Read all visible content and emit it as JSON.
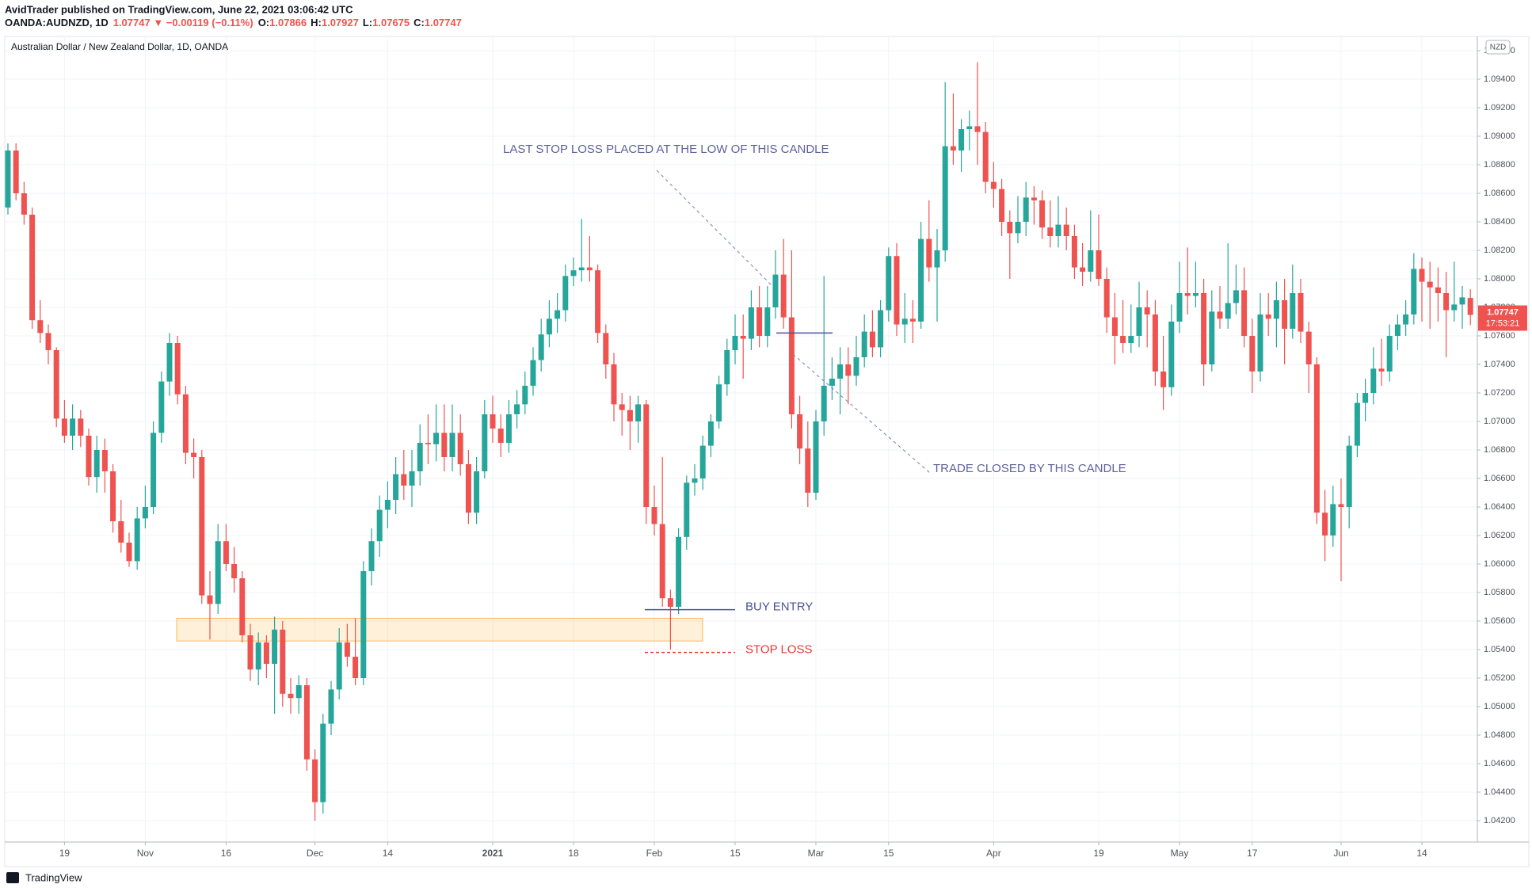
{
  "header": {
    "byline": "AvidTrader published on TradingView.com, June 22, 2021 03:06:42 UTC",
    "symbol": "OANDA:AUDNZD, 1D",
    "change": "1.07747 ▼ −0.00119 (−0.11%)",
    "ohlc": [
      {
        "key": "O:",
        "value": "1.07866"
      },
      {
        "key": "H:",
        "value": "1.07927"
      },
      {
        "key": "L:",
        "value": "1.07675"
      },
      {
        "key": "C:",
        "value": "1.07747"
      }
    ]
  },
  "footer": "TradingView",
  "currency": "NZD",
  "countdown": "17:53:21",
  "chart_data": {
    "type": "candlestick",
    "title": "Australian Dollar / New Zealand Dollar, 1D, OANDA",
    "up_color": "#26a69a",
    "down_color": "#ef5350",
    "grid": true,
    "ylim": [
      1.0405,
      1.097
    ],
    "yticks": [
      {
        "value": 1.042,
        "label": "1.04200"
      },
      {
        "value": 1.044,
        "label": "1.04400"
      },
      {
        "value": 1.046,
        "label": "1.04600"
      },
      {
        "value": 1.048,
        "label": "1.04800"
      },
      {
        "value": 1.05,
        "label": "1.05000"
      },
      {
        "value": 1.052,
        "label": "1.05200"
      },
      {
        "value": 1.054,
        "label": "1.05400"
      },
      {
        "value": 1.056,
        "label": "1.05600"
      },
      {
        "value": 1.058,
        "label": "1.05800"
      },
      {
        "value": 1.06,
        "label": "1.06000"
      },
      {
        "value": 1.062,
        "label": "1.06200"
      },
      {
        "value": 1.064,
        "label": "1.06400"
      },
      {
        "value": 1.066,
        "label": "1.06600"
      },
      {
        "value": 1.068,
        "label": "1.06800"
      },
      {
        "value": 1.07,
        "label": "1.07000"
      },
      {
        "value": 1.072,
        "label": "1.07200"
      },
      {
        "value": 1.074,
        "label": "1.07400"
      },
      {
        "value": 1.076,
        "label": "1.07600"
      },
      {
        "value": 1.078,
        "label": "1.07800"
      },
      {
        "value": 1.08,
        "label": "1.08000"
      },
      {
        "value": 1.082,
        "label": "1.08200"
      },
      {
        "value": 1.084,
        "label": "1.08400"
      },
      {
        "value": 1.086,
        "label": "1.08600"
      },
      {
        "value": 1.088,
        "label": "1.08800"
      },
      {
        "value": 1.09,
        "label": "1.09000"
      },
      {
        "value": 1.092,
        "label": "1.09200"
      },
      {
        "value": 1.094,
        "label": "1.09400"
      },
      {
        "value": 1.096,
        "label": "1.09600"
      }
    ],
    "xticks": [
      {
        "value": 7,
        "label": "19"
      },
      {
        "value": 17,
        "label": "Nov"
      },
      {
        "value": 27,
        "label": "16"
      },
      {
        "value": 38,
        "label": "Dec"
      },
      {
        "value": 47,
        "label": "14"
      },
      {
        "value": 60,
        "label": "2021"
      },
      {
        "value": 70,
        "label": "18"
      },
      {
        "value": 80,
        "label": "Feb"
      },
      {
        "value": 90,
        "label": "15"
      },
      {
        "value": 100,
        "label": "Mar"
      },
      {
        "value": 109,
        "label": "15"
      },
      {
        "value": 122,
        "label": "Apr"
      },
      {
        "value": 135,
        "label": "19"
      },
      {
        "value": 145,
        "label": "May"
      },
      {
        "value": 154,
        "label": "17"
      },
      {
        "value": 165,
        "label": "Jun"
      },
      {
        "value": 175,
        "label": "14"
      }
    ],
    "levels": [
      {
        "label": "BUY ENTRY",
        "value": 1.0568,
        "color": "#4a5396",
        "dashed": false
      },
      {
        "label": "STOP LOSS",
        "value": 1.0538,
        "color": "#e53935",
        "dashed": true
      }
    ],
    "zone": [
      1.0546,
      1.0562
    ],
    "trail_stop": 1.0762,
    "annotations": [
      {
        "text": "LAST STOP LOSS PLACED AT THE LOW OF THIS CANDLE"
      },
      {
        "text": "TRADE CLOSED BY THIS CANDLE"
      }
    ],
    "candles": [
      [
        1.085,
        1.0895,
        1.0845,
        1.089
      ],
      [
        1.089,
        1.0895,
        1.0855,
        1.086
      ],
      [
        1.086,
        1.0868,
        1.0838,
        1.0845
      ],
      [
        1.0845,
        1.085,
        1.0765,
        1.0771
      ],
      [
        1.0771,
        1.0785,
        1.0755,
        1.0762
      ],
      [
        1.0762,
        1.0768,
        1.074,
        1.075
      ],
      [
        1.075,
        1.0752,
        1.0696,
        1.0702
      ],
      [
        1.0702,
        1.0715,
        1.0685,
        1.069
      ],
      [
        1.069,
        1.0712,
        1.068,
        1.0702
      ],
      [
        1.0702,
        1.0708,
        1.0682,
        1.069
      ],
      [
        1.069,
        1.0695,
        1.0655,
        1.0661
      ],
      [
        1.0661,
        1.069,
        1.065,
        1.068
      ],
      [
        1.068,
        1.0688,
        1.065,
        1.0665
      ],
      [
        1.0665,
        1.067,
        1.0622,
        1.063
      ],
      [
        1.063,
        1.0645,
        1.0608,
        1.0615
      ],
      [
        1.0615,
        1.0622,
        1.0598,
        1.0602
      ],
      [
        1.0602,
        1.064,
        1.0596,
        1.0632
      ],
      [
        1.0632,
        1.0655,
        1.0625,
        1.064
      ],
      [
        1.064,
        1.07,
        1.0635,
        1.0692
      ],
      [
        1.0692,
        1.0735,
        1.0685,
        1.0728
      ],
      [
        1.0728,
        1.0762,
        1.0718,
        1.0755
      ],
      [
        1.0755,
        1.076,
        1.0712,
        1.0719
      ],
      [
        1.0719,
        1.0725,
        1.067,
        1.0678
      ],
      [
        1.0678,
        1.0688,
        1.066,
        1.0675
      ],
      [
        1.0675,
        1.068,
        1.0572,
        1.0578
      ],
      [
        1.0578,
        1.0595,
        1.0547,
        1.0572
      ],
      [
        1.0572,
        1.0628,
        1.0565,
        1.0616
      ],
      [
        1.0616,
        1.0628,
        1.0595,
        1.06
      ],
      [
        1.06,
        1.0612,
        1.058,
        1.059
      ],
      [
        1.059,
        1.0595,
        1.0545,
        1.055
      ],
      [
        1.055,
        1.0558,
        1.0518,
        1.0526
      ],
      [
        1.0526,
        1.0552,
        1.0515,
        1.0545
      ],
      [
        1.0545,
        1.055,
        1.052,
        1.053
      ],
      [
        1.053,
        1.0563,
        1.0495,
        1.0554
      ],
      [
        1.0554,
        1.056,
        1.05,
        1.0509
      ],
      [
        1.0509,
        1.052,
        1.0495,
        1.0506
      ],
      [
        1.0506,
        1.0522,
        1.0495,
        1.0515
      ],
      [
        1.0515,
        1.052,
        1.0455,
        1.0463
      ],
      [
        1.0463,
        1.047,
        1.042,
        1.0433
      ],
      [
        1.0433,
        1.0495,
        1.0425,
        1.0488
      ],
      [
        1.0488,
        1.0518,
        1.048,
        1.0512
      ],
      [
        1.0512,
        1.0555,
        1.0505,
        1.0545
      ],
      [
        1.0545,
        1.0558,
        1.0528,
        1.0535
      ],
      [
        1.0535,
        1.0562,
        1.0515,
        1.052
      ],
      [
        1.052,
        1.0602,
        1.0515,
        1.0595
      ],
      [
        1.0595,
        1.0625,
        1.0585,
        1.0616
      ],
      [
        1.0616,
        1.0648,
        1.0605,
        1.0638
      ],
      [
        1.0638,
        1.0658,
        1.0625,
        1.0645
      ],
      [
        1.0645,
        1.0675,
        1.0635,
        1.0663
      ],
      [
        1.0663,
        1.068,
        1.0645,
        1.0655
      ],
      [
        1.0655,
        1.068,
        1.064,
        1.0665
      ],
      [
        1.0665,
        1.0698,
        1.0655,
        1.0685
      ],
      [
        1.0685,
        1.0705,
        1.067,
        1.0684
      ],
      [
        1.0684,
        1.0712,
        1.0672,
        1.0692
      ],
      [
        1.0692,
        1.0712,
        1.0665,
        1.0675
      ],
      [
        1.0675,
        1.0712,
        1.0665,
        1.0692
      ],
      [
        1.0692,
        1.0705,
        1.0662,
        1.067
      ],
      [
        1.067,
        1.068,
        1.0628,
        1.0636
      ],
      [
        1.0636,
        1.0675,
        1.0628,
        1.0665
      ],
      [
        1.0665,
        1.0715,
        1.066,
        1.0705
      ],
      [
        1.0705,
        1.0718,
        1.0685,
        1.0695
      ],
      [
        1.0695,
        1.0705,
        1.0675,
        1.0685
      ],
      [
        1.0685,
        1.0715,
        1.0678,
        1.0705
      ],
      [
        1.0705,
        1.0722,
        1.0695,
        1.0712
      ],
      [
        1.0712,
        1.0735,
        1.0705,
        1.0725
      ],
      [
        1.0725,
        1.0752,
        1.0718,
        1.0743
      ],
      [
        1.0743,
        1.0772,
        1.0735,
        1.0761
      ],
      [
        1.0761,
        1.0785,
        1.0752,
        1.0772
      ],
      [
        1.0772,
        1.079,
        1.0762,
        1.0778
      ],
      [
        1.0778,
        1.081,
        1.077,
        1.0802
      ],
      [
        1.0802,
        1.0815,
        1.0795,
        1.0806
      ],
      [
        1.0806,
        1.0842,
        1.0798,
        1.0808
      ],
      [
        1.0808,
        1.083,
        1.0798,
        1.0806
      ],
      [
        1.0806,
        1.081,
        1.0755,
        1.0762
      ],
      [
        1.0762,
        1.0768,
        1.073,
        1.074
      ],
      [
        1.074,
        1.0748,
        1.07,
        1.0712
      ],
      [
        1.0712,
        1.072,
        1.069,
        1.0708
      ],
      [
        1.0708,
        1.0718,
        1.068,
        1.07
      ],
      [
        1.07,
        1.0718,
        1.0685,
        1.0712
      ],
      [
        1.0712,
        1.0715,
        1.0628,
        1.064
      ],
      [
        1.064,
        1.0655,
        1.062,
        1.0628
      ],
      [
        1.0628,
        1.0675,
        1.057,
        1.0576
      ],
      [
        1.0576,
        1.0582,
        1.054,
        1.057
      ],
      [
        1.057,
        1.0625,
        1.0565,
        1.0619
      ],
      [
        1.0619,
        1.0662,
        1.061,
        1.0657
      ],
      [
        1.0657,
        1.067,
        1.0648,
        1.066
      ],
      [
        1.066,
        1.069,
        1.0652,
        1.0683
      ],
      [
        1.0683,
        1.0705,
        1.0675,
        1.07
      ],
      [
        1.07,
        1.0732,
        1.0695,
        1.0726
      ],
      [
        1.0726,
        1.0758,
        1.0718,
        1.075
      ],
      [
        1.075,
        1.0775,
        1.074,
        1.076
      ],
      [
        1.076,
        1.0775,
        1.073,
        1.0758
      ],
      [
        1.0758,
        1.0792,
        1.075,
        1.078
      ],
      [
        1.078,
        1.0795,
        1.0752,
        1.076
      ],
      [
        1.076,
        1.0795,
        1.0752,
        1.078
      ],
      [
        1.078,
        1.082,
        1.0772,
        1.0803
      ],
      [
        1.0803,
        1.0828,
        1.0765,
        1.0773
      ],
      [
        1.0773,
        1.082,
        1.0695,
        1.0705
      ],
      [
        1.0705,
        1.0718,
        1.067,
        1.0681
      ],
      [
        1.0681,
        1.07,
        1.064,
        1.065
      ],
      [
        1.065,
        1.0708,
        1.0645,
        1.07
      ],
      [
        1.07,
        1.0802,
        1.069,
        1.0725
      ],
      [
        1.0725,
        1.0745,
        1.0715,
        1.073
      ],
      [
        1.073,
        1.0752,
        1.0705,
        1.074
      ],
      [
        1.074,
        1.0752,
        1.0712,
        1.0732
      ],
      [
        1.0732,
        1.076,
        1.0725,
        1.0745
      ],
      [
        1.0745,
        1.0775,
        1.0738,
        1.0763
      ],
      [
        1.0763,
        1.0778,
        1.0745,
        1.0752
      ],
      [
        1.0752,
        1.0785,
        1.0745,
        1.0778
      ],
      [
        1.0778,
        1.0822,
        1.077,
        1.0816
      ],
      [
        1.0816,
        1.0825,
        1.076,
        1.0768
      ],
      [
        1.0768,
        1.079,
        1.0755,
        1.0772
      ],
      [
        1.0772,
        1.0785,
        1.0755,
        1.077
      ],
      [
        1.077,
        1.084,
        1.0765,
        1.0828
      ],
      [
        1.0828,
        1.0855,
        1.0798,
        1.0808
      ],
      [
        1.0808,
        1.0835,
        1.077,
        1.082
      ],
      [
        1.082,
        1.0938,
        1.0812,
        1.0893
      ],
      [
        1.0893,
        1.093,
        1.088,
        1.089
      ],
      [
        1.089,
        1.0912,
        1.0875,
        1.0905
      ],
      [
        1.0905,
        1.0918,
        1.089,
        1.0907
      ],
      [
        1.0907,
        1.0952,
        1.088,
        1.0903
      ],
      [
        1.0903,
        1.091,
        1.086,
        1.0868
      ],
      [
        1.0868,
        1.0882,
        1.085,
        1.0863
      ],
      [
        1.0863,
        1.087,
        1.083,
        1.084
      ],
      [
        1.084,
        1.0848,
        1.08,
        1.0832
      ],
      [
        1.0832,
        1.0858,
        1.0825,
        1.084
      ],
      [
        1.084,
        1.0868,
        1.083,
        1.0857
      ],
      [
        1.0857,
        1.0865,
        1.0838,
        1.0855
      ],
      [
        1.0855,
        1.0862,
        1.0828,
        1.0836
      ],
      [
        1.0836,
        1.0855,
        1.0822,
        1.083
      ],
      [
        1.083,
        1.0858,
        1.0822,
        1.0838
      ],
      [
        1.0838,
        1.085,
        1.082,
        1.083
      ],
      [
        1.083,
        1.0838,
        1.08,
        1.0808
      ],
      [
        1.0808,
        1.0825,
        1.0795,
        1.0805
      ],
      [
        1.0805,
        1.0848,
        1.0798,
        1.082
      ],
      [
        1.082,
        1.0845,
        1.0795,
        1.08
      ],
      [
        1.08,
        1.0808,
        1.0762,
        1.0773
      ],
      [
        1.0773,
        1.079,
        1.074,
        1.076
      ],
      [
        1.076,
        1.0785,
        1.0748,
        1.0755
      ],
      [
        1.0755,
        1.0782,
        1.0748,
        1.076
      ],
      [
        1.076,
        1.0798,
        1.0752,
        1.078
      ],
      [
        1.078,
        1.0792,
        1.0752,
        1.0775
      ],
      [
        1.0775,
        1.0785,
        1.0725,
        1.0735
      ],
      [
        1.0735,
        1.076,
        1.0708,
        1.0724
      ],
      [
        1.0724,
        1.0782,
        1.0718,
        1.077
      ],
      [
        1.077,
        1.0812,
        1.0762,
        1.079
      ],
      [
        1.079,
        1.0822,
        1.0775,
        1.0788
      ],
      [
        1.0788,
        1.0812,
        1.078,
        1.079
      ],
      [
        1.079,
        1.08,
        1.0725,
        1.074
      ],
      [
        1.074,
        1.0792,
        1.0735,
        1.0777
      ],
      [
        1.0777,
        1.0795,
        1.0765,
        1.0772
      ],
      [
        1.0772,
        1.0825,
        1.0765,
        1.0783
      ],
      [
        1.0783,
        1.081,
        1.0775,
        1.0792
      ],
      [
        1.0792,
        1.0808,
        1.0752,
        1.076
      ],
      [
        1.076,
        1.0772,
        1.072,
        1.0735
      ],
      [
        1.0735,
        1.079,
        1.0728,
        1.0775
      ],
      [
        1.0775,
        1.079,
        1.076,
        1.0772
      ],
      [
        1.0772,
        1.0798,
        1.0752,
        1.0785
      ],
      [
        1.0785,
        1.08,
        1.074,
        1.0765
      ],
      [
        1.0765,
        1.081,
        1.0758,
        1.079
      ],
      [
        1.079,
        1.08,
        1.0755,
        1.0763
      ],
      [
        1.0763,
        1.077,
        1.072,
        1.074
      ],
      [
        1.074,
        1.0745,
        1.0628,
        1.0636
      ],
      [
        1.0636,
        1.0652,
        1.0602,
        1.062
      ],
      [
        1.062,
        1.0655,
        1.0612,
        1.0642
      ],
      [
        1.0642,
        1.066,
        1.0588,
        1.064
      ],
      [
        1.064,
        1.069,
        1.0625,
        1.0683
      ],
      [
        1.0683,
        1.072,
        1.0675,
        1.0713
      ],
      [
        1.0713,
        1.073,
        1.07,
        1.072
      ],
      [
        1.072,
        1.0752,
        1.0712,
        1.0737
      ],
      [
        1.0737,
        1.0758,
        1.0725,
        1.0735
      ],
      [
        1.0735,
        1.0768,
        1.0728,
        1.076
      ],
      [
        1.076,
        1.0775,
        1.075,
        1.0768
      ],
      [
        1.0768,
        1.0785,
        1.076,
        1.0775
      ],
      [
        1.0775,
        1.0818,
        1.0768,
        1.0807
      ],
      [
        1.0807,
        1.0815,
        1.077,
        1.0798
      ],
      [
        1.0798,
        1.0812,
        1.0765,
        1.0794
      ],
      [
        1.0794,
        1.0808,
        1.077,
        1.079
      ],
      [
        1.079,
        1.0805,
        1.0745,
        1.0778
      ],
      [
        1.0778,
        1.0812,
        1.077,
        1.0782
      ],
      [
        1.0782,
        1.0795,
        1.0765,
        1.0787
      ],
      [
        1.07866,
        1.07927,
        1.07675,
        1.07747
      ]
    ]
  }
}
